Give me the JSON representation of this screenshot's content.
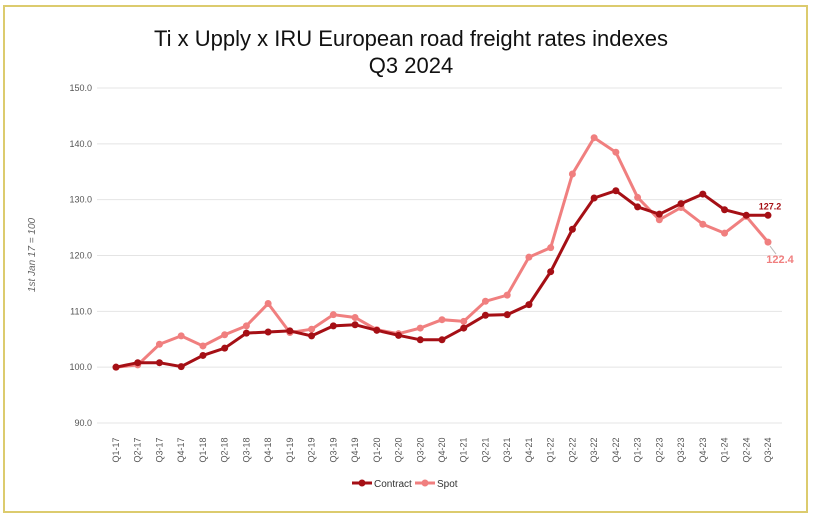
{
  "chart_data": {
    "type": "line",
    "title": "Ti x Upply x IRU European road freight rates indexes",
    "subtitle": "Q3 2024",
    "ylabel": "1st Jan 17 = 100",
    "xlabel": "",
    "ylim": [
      90,
      150
    ],
    "yticks": [
      "90.0",
      "100.0",
      "110.0",
      "120.0",
      "130.0",
      "140.0",
      "150.0"
    ],
    "grid": true,
    "legend": "bottom",
    "categories": [
      "Q1-17",
      "Q2-17",
      "Q3-17",
      "Q4-17",
      "Q1-18",
      "Q2-18",
      "Q3-18",
      "Q4-18",
      "Q1-19",
      "Q2-19",
      "Q3-19",
      "Q4-19",
      "Q1-20",
      "Q2-20",
      "Q3-20",
      "Q4-20",
      "Q1-21",
      "Q2-21",
      "Q3-21",
      "Q4-21",
      "Q1-22",
      "Q2-22",
      "Q3-22",
      "Q4-22",
      "Q1-23",
      "Q2-23",
      "Q3-23",
      "Q4-23",
      "Q1-24",
      "Q2-24",
      "Q3-24"
    ],
    "series": [
      {
        "name": "Contract",
        "color": "#a50f15",
        "end_label": "127.2",
        "values": [
          100,
          100.8,
          100.8,
          100.1,
          102.1,
          103.4,
          106.1,
          106.3,
          106.5,
          105.6,
          107.4,
          107.6,
          106.6,
          105.7,
          104.9,
          104.9,
          107.0,
          109.3,
          109.4,
          111.2,
          117.1,
          124.7,
          130.3,
          131.6,
          128.7,
          127.4,
          129.3,
          131.0,
          128.2,
          127.2,
          127.2
        ]
      },
      {
        "name": "Spot",
        "color": "#f07f7f",
        "end_label": "122.4",
        "values": [
          100,
          100.4,
          104.1,
          105.6,
          103.8,
          105.8,
          107.4,
          111.4,
          106.2,
          106.8,
          109.4,
          108.9,
          106.7,
          106.0,
          107.0,
          108.5,
          108.2,
          111.8,
          112.9,
          119.7,
          121.4,
          134.6,
          141.1,
          138.5,
          130.4,
          126.4,
          128.6,
          125.6,
          124.0,
          127.0,
          122.4
        ]
      }
    ]
  }
}
